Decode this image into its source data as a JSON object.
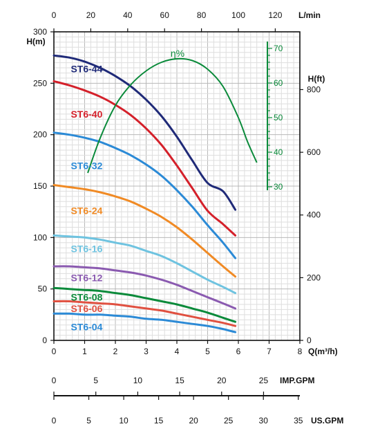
{
  "chart_data": {
    "type": "line",
    "x_label": "Q(m³/h)",
    "x_range": [
      0,
      8
    ],
    "x_ticks": [
      "0",
      "1",
      "2",
      "3",
      "4",
      "5",
      "6",
      "7",
      "8"
    ],
    "y_label": "H(m)",
    "y_range": [
      0,
      300
    ],
    "y_ticks": [
      "0",
      "50",
      "100",
      "150",
      "200",
      "250",
      "300"
    ],
    "top_axis": {
      "unit": "L/min",
      "ticks": [
        "0",
        "20",
        "40",
        "60",
        "80",
        "100",
        "120"
      ],
      "values": [
        0,
        20,
        40,
        60,
        80,
        100,
        120
      ]
    },
    "right_axis": {
      "unit": "H(ft)",
      "ticks": [
        "0",
        "200",
        "400",
        "600",
        "800"
      ],
      "values": [
        0,
        200,
        400,
        600,
        800
      ]
    },
    "efficiency_axis": {
      "label": "η%",
      "ticks": [
        "30",
        "40",
        "50",
        "60",
        "70"
      ],
      "values": [
        30,
        40,
        50,
        60,
        70
      ],
      "color": "#0a8a3a"
    },
    "grid": true,
    "series": [
      {
        "name": "ST6-44",
        "color": "#1f2a78",
        "label_at": [
          0.55,
          264
        ],
        "x": [
          0,
          0.5,
          1,
          1.5,
          2,
          2.5,
          3,
          3.5,
          4,
          4.5,
          5,
          5.5,
          5.9
        ],
        "y": [
          277,
          275,
          271,
          265,
          257,
          247,
          234,
          218,
          198,
          175,
          153,
          145,
          127
        ]
      },
      {
        "name": "ST6-40",
        "color": "#d4202a",
        "label_at": [
          0.55,
          220
        ],
        "x": [
          0,
          0.5,
          1,
          1.5,
          2,
          2.5,
          3,
          3.5,
          4,
          4.5,
          5,
          5.5,
          5.9
        ],
        "y": [
          252,
          248,
          243,
          237,
          229,
          219,
          206,
          190,
          170,
          148,
          126,
          113,
          102
        ]
      },
      {
        "name": "ST6-32",
        "color": "#2b8ad6",
        "label_at": [
          0.55,
          170
        ],
        "x": [
          0,
          0.5,
          1,
          1.5,
          2,
          2.5,
          3,
          3.5,
          4,
          4.5,
          5,
          5.5,
          5.9
        ],
        "y": [
          202,
          200,
          197,
          193,
          187,
          180,
          171,
          160,
          146,
          130,
          112,
          95,
          80
        ]
      },
      {
        "name": "ST6-24",
        "color": "#f08a24",
        "label_at": [
          0.55,
          126
        ],
        "x": [
          0,
          0.5,
          1,
          1.5,
          2,
          2.5,
          3,
          3.5,
          4,
          4.5,
          5,
          5.5,
          5.9
        ],
        "y": [
          151,
          149,
          147,
          144,
          140,
          135,
          128,
          120,
          110,
          98,
          85,
          72,
          62
        ]
      },
      {
        "name": "ST6-16",
        "color": "#6ec3e0",
        "label_at": [
          0.55,
          89
        ],
        "x": [
          0,
          0.5,
          1,
          1.5,
          2,
          2.5,
          3,
          3.5,
          4,
          4.5,
          5,
          5.5,
          5.9
        ],
        "y": [
          102,
          101,
          100,
          98,
          95,
          92,
          87,
          82,
          75,
          67,
          59,
          52,
          46
        ]
      },
      {
        "name": "ST6-12",
        "color": "#8a5ab0",
        "label_at": [
          0.55,
          61
        ],
        "x": [
          0,
          0.5,
          1,
          1.5,
          2,
          2.5,
          3,
          3.5,
          4,
          4.5,
          5,
          5.5,
          5.9
        ],
        "y": [
          72,
          72,
          71,
          70,
          68,
          66,
          63,
          59,
          54,
          48,
          42,
          36,
          31
        ]
      },
      {
        "name": "ST6-08",
        "color": "#0a8a3a",
        "label_at": [
          0.55,
          42
        ],
        "x": [
          0,
          0.5,
          1,
          1.5,
          2,
          2.5,
          3,
          3.5,
          4,
          4.5,
          5,
          5.5,
          5.9
        ],
        "y": [
          51,
          50,
          49,
          48,
          46,
          44,
          41,
          38,
          35,
          31,
          27,
          22,
          18
        ]
      },
      {
        "name": "ST6-06",
        "color": "#e05040",
        "label_at": [
          0.55,
          31
        ],
        "x": [
          0,
          0.5,
          1,
          1.5,
          2,
          2.5,
          3,
          3.5,
          4,
          4.5,
          5,
          5.5,
          5.9
        ],
        "y": [
          38,
          38,
          37,
          36,
          35,
          33,
          31,
          29,
          26,
          23,
          20,
          17,
          14
        ]
      },
      {
        "name": "ST6-04",
        "color": "#2b8ad6",
        "label_at": [
          0.55,
          13
        ],
        "x": [
          0,
          0.5,
          1,
          1.5,
          2,
          2.5,
          3,
          3.5,
          4,
          4.5,
          5,
          5.5,
          5.9
        ],
        "y": [
          26,
          26,
          25,
          25,
          24,
          23,
          21,
          20,
          18,
          16,
          14,
          11,
          8
        ]
      }
    ],
    "efficiency_curve": {
      "name": "η%",
      "x": [
        1.1,
        1.5,
        2,
        2.5,
        3,
        3.5,
        4,
        4.5,
        5,
        5.5,
        6,
        6.3,
        6.6
      ],
      "eff": [
        34,
        44,
        53.5,
        59.5,
        63.5,
        66,
        67,
        66.5,
        64,
        59,
        50,
        43,
        37
      ]
    }
  },
  "bottom_scales": {
    "imp_gpm": {
      "label": "IMP.GPM",
      "ticks": [
        "0",
        "5",
        "10",
        "15",
        "20",
        "25"
      ],
      "values": [
        0,
        5,
        10,
        15,
        20,
        25
      ]
    },
    "us_gpm": {
      "label": "US.GPM",
      "ticks": [
        "0",
        "5",
        "10",
        "15",
        "20",
        "25",
        "30",
        "35"
      ],
      "values": [
        0,
        5,
        10,
        15,
        20,
        25,
        30,
        35
      ]
    }
  }
}
